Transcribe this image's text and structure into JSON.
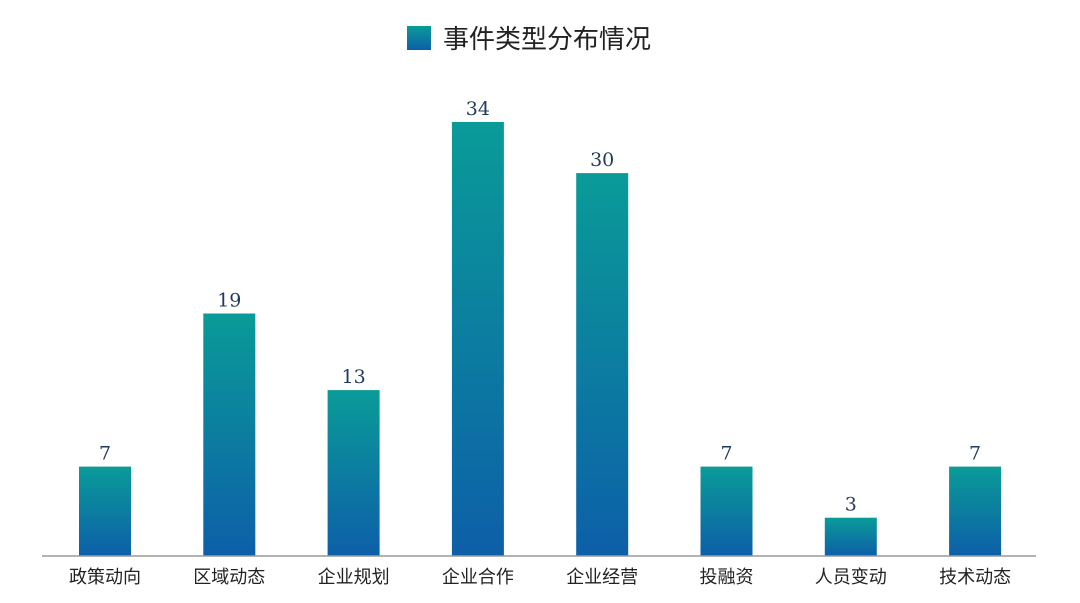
{
  "chart_data": {
    "type": "bar",
    "categories": [
      "政策动向",
      "区域动态",
      "企业规划",
      "企业合作",
      "企业经营",
      "投融资",
      "人员变动",
      "技术动态"
    ],
    "series": [
      {
        "name": "事件类型分布情况",
        "values": [
          7,
          19,
          13,
          34,
          30,
          7,
          3,
          7
        ]
      }
    ],
    "legend_position": "top-center",
    "grid": false,
    "ylim": [
      0,
      34
    ],
    "colors": {
      "bar_top": "#0a9b98",
      "bar_bottom": "#0d5fa8",
      "axis": "#9a9a9a",
      "value_text": "#1f3a5c"
    }
  }
}
